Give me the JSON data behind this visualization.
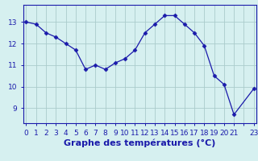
{
  "x": [
    0,
    1,
    2,
    3,
    4,
    5,
    6,
    7,
    8,
    9,
    10,
    11,
    12,
    13,
    14,
    15,
    16,
    17,
    18,
    19,
    20,
    21,
    23
  ],
  "y": [
    13.0,
    12.9,
    12.5,
    12.3,
    12.0,
    11.7,
    10.8,
    11.0,
    10.8,
    11.1,
    11.3,
    11.7,
    12.5,
    12.9,
    13.3,
    13.3,
    12.9,
    12.5,
    11.9,
    10.5,
    10.1,
    8.7,
    9.9
  ],
  "line_color": "#1a1aaa",
  "marker": "D",
  "marker_size": 2.5,
  "line_width": 0.9,
  "bg_color": "#d6f0f0",
  "grid_color": "#aacccc",
  "xlabel": "Graphe des températures (°C)",
  "xlabel_fontsize": 8,
  "xtick_labels": [
    "0",
    "1",
    "2",
    "3",
    "4",
    "5",
    "6",
    "7",
    "8",
    "9",
    "10",
    "11",
    "12",
    "13",
    "14",
    "15",
    "16",
    "17",
    "18",
    "19",
    "20",
    "21",
    "",
    "23"
  ],
  "xticks": [
    0,
    1,
    2,
    3,
    4,
    5,
    6,
    7,
    8,
    9,
    10,
    11,
    12,
    13,
    14,
    15,
    16,
    17,
    18,
    19,
    20,
    21,
    22,
    23
  ],
  "yticks": [
    9,
    10,
    11,
    12,
    13
  ],
  "ylim": [
    8.3,
    13.8
  ],
  "xlim": [
    -0.3,
    23.3
  ],
  "tick_color": "#1a1aaa",
  "tick_fontsize": 6.5,
  "spine_color": "#1a1aaa",
  "label_color": "#1a1aaa"
}
